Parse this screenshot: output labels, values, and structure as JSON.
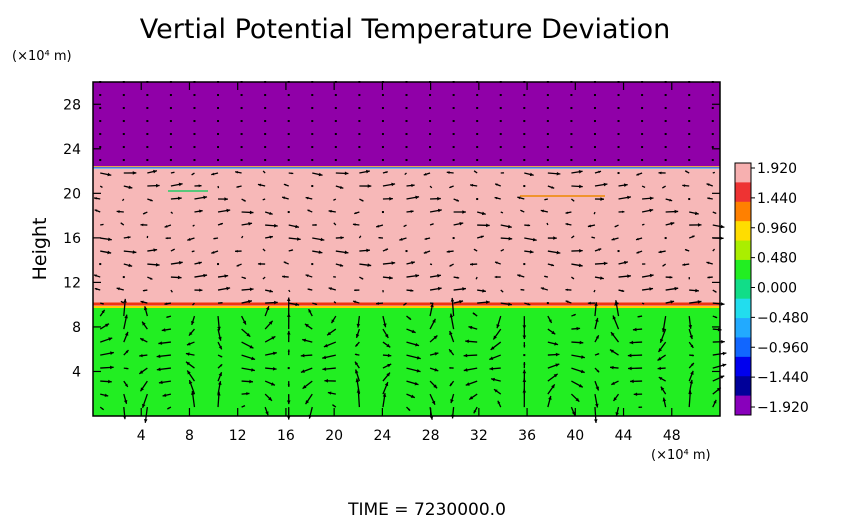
{
  "chart_data": {
    "type": "heatmap",
    "title": "Vertial Potential Temperature Deviation",
    "ylabel": "Height",
    "x_unit": "(×10⁴ m)",
    "y_unit": "(×10⁴ m)",
    "xlim": [
      0,
      52
    ],
    "ylim": [
      0,
      30
    ],
    "x_ticks": [
      4,
      8,
      12,
      16,
      20,
      24,
      28,
      32,
      36,
      40,
      44,
      48
    ],
    "y_ticks": [
      4,
      8,
      12,
      16,
      20,
      24,
      28
    ],
    "bands": [
      {
        "y_from": 0,
        "y_to": 9.8,
        "value": 0.25,
        "color": "#22ee22"
      },
      {
        "y_from": 9.8,
        "y_to": 22.3,
        "value": 1.92,
        "color": "#f7b8b8"
      },
      {
        "y_from": 22.3,
        "y_to": 30,
        "value": -1.92,
        "color": "#9000a8"
      }
    ],
    "colorbar": {
      "labels": [
        "1.920",
        "1.440",
        "0.960",
        "0.480",
        "0.000",
        "−0.480",
        "−0.960",
        "−1.440",
        "−1.920"
      ],
      "colors": [
        "#f7b0b0",
        "#ee3333",
        "#ff8000",
        "#ffdd00",
        "#aaee00",
        "#22ee22",
        "#11dd88",
        "#22ddee",
        "#22aaff",
        "#1166ff",
        "#0000ee",
        "#000099",
        "#8800bb"
      ]
    },
    "time_label": "TIME  =  7230000.0"
  }
}
